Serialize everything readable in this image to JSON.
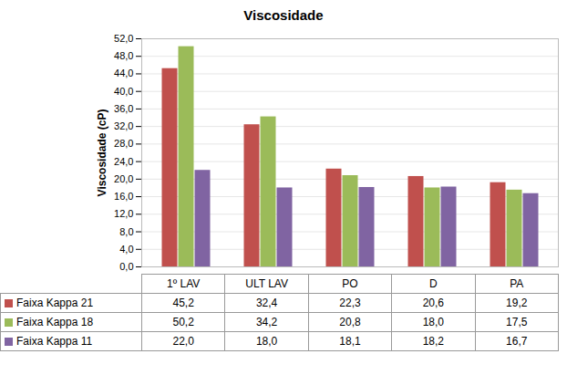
{
  "chart_data": {
    "type": "bar",
    "title": "Viscosidade",
    "ylabel": "Viscosidade (cP)",
    "categories": [
      "1º LAV",
      "ULT LAV",
      "PO",
      "D",
      "PA"
    ],
    "series": [
      {
        "name": "Faixa Kappa 21",
        "color": "#c0504d",
        "values": [
          45.2,
          32.4,
          22.3,
          20.6,
          19.2
        ],
        "value_labels": [
          "45,2",
          "32,4",
          "22,3",
          "20,6",
          "19,2"
        ]
      },
      {
        "name": "Faixa Kappa 18",
        "color": "#9bbb59",
        "values": [
          50.2,
          34.2,
          20.8,
          18.0,
          17.5
        ],
        "value_labels": [
          "50,2",
          "34,2",
          "20,8",
          "18,0",
          "17,5"
        ]
      },
      {
        "name": "Faixa Kappa 11",
        "color": "#8064a2",
        "values": [
          22.0,
          18.0,
          18.1,
          18.2,
          16.7
        ],
        "value_labels": [
          "22,0",
          "18,0",
          "18,1",
          "18,2",
          "16,7"
        ]
      }
    ],
    "ylim": [
      0,
      52
    ],
    "yticks": [
      {
        "value": 0,
        "label": "0,0"
      },
      {
        "value": 4,
        "label": "4,0"
      },
      {
        "value": 8,
        "label": "8,0"
      },
      {
        "value": 12,
        "label": "12,0"
      },
      {
        "value": 16,
        "label": "16,0"
      },
      {
        "value": 20,
        "label": "20,0"
      },
      {
        "value": 24,
        "label": "24,0"
      },
      {
        "value": 28,
        "label": "28,0"
      },
      {
        "value": 32,
        "label": "32,0"
      },
      {
        "value": 36,
        "label": "36,0"
      },
      {
        "value": 40,
        "label": "40,0"
      },
      {
        "value": 44,
        "label": "44,0"
      },
      {
        "value": 48,
        "label": "48,0"
      },
      {
        "value": 52,
        "label": "52,0"
      }
    ],
    "grid": true
  }
}
